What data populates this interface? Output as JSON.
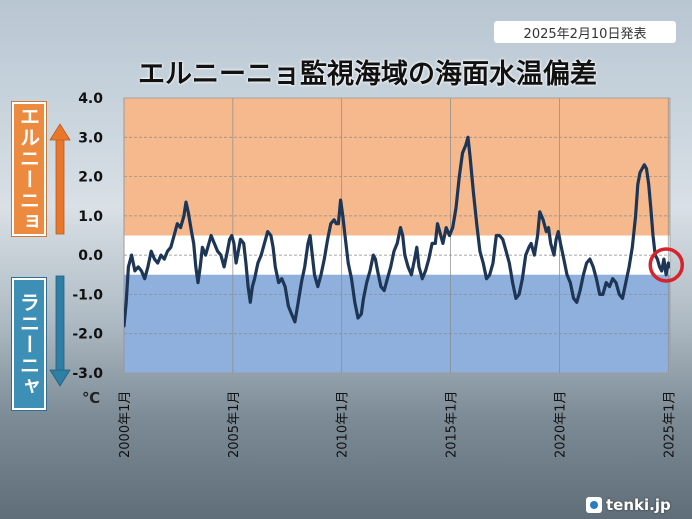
{
  "header": {
    "date_badge": "2025年2月10日発表",
    "title": "エルニーニョ監視海域の海面水温偏差"
  },
  "labels": {
    "el_nino": "エルニーニョ",
    "la_nina": "ラニーニャ",
    "unit": "℃"
  },
  "logo": {
    "text": "tenki.jp"
  },
  "colors": {
    "el_nino_zone": "#f5b98d",
    "la_nina_zone": "#8fb0dd",
    "line": "#1e3656",
    "highlight_circle": "#d5242b",
    "el_nino_label": "#ec8a3f",
    "la_nina_label": "#3d8fb5"
  },
  "chart_data": {
    "type": "line",
    "title": "エルニーニョ監視海域の海面水温偏差",
    "xlabel": "",
    "ylabel": "℃",
    "ylim": [
      -3.0,
      4.0
    ],
    "xlim": [
      2000.0,
      2025.08
    ],
    "yticks": [
      "4.0",
      "3.0",
      "2.0",
      "1.0",
      "0.0",
      "-1.0",
      "-2.0",
      "-3.0"
    ],
    "xticks": [
      {
        "value": 2000,
        "label": "2000年1月"
      },
      {
        "value": 2005,
        "label": "2005年1月"
      },
      {
        "value": 2010,
        "label": "2010年1月"
      },
      {
        "value": 2015,
        "label": "2015年1月"
      },
      {
        "value": 2020,
        "label": "2020年1月"
      },
      {
        "value": 2025,
        "label": "2025年1月"
      }
    ],
    "grid": true,
    "bands": [
      {
        "name": "el_nino",
        "from": 0.5,
        "to": 4.0
      },
      {
        "name": "neutral",
        "from": -0.5,
        "to": 0.5
      },
      {
        "name": "la_nina",
        "from": -3.0,
        "to": -0.5
      }
    ],
    "highlight": {
      "x": 2025.0,
      "y": -0.25
    },
    "series": [
      {
        "name": "",
        "points": [
          [
            2000.0,
            -1.8
          ],
          [
            2000.1,
            -1.2
          ],
          [
            2000.2,
            -0.3
          ],
          [
            2000.35,
            0.0
          ],
          [
            2000.5,
            -0.4
          ],
          [
            2000.65,
            -0.3
          ],
          [
            2000.8,
            -0.4
          ],
          [
            2000.95,
            -0.6
          ],
          [
            2001.1,
            -0.3
          ],
          [
            2001.25,
            0.1
          ],
          [
            2001.4,
            -0.1
          ],
          [
            2001.55,
            -0.2
          ],
          [
            2001.7,
            0.0
          ],
          [
            2001.85,
            -0.1
          ],
          [
            2002.0,
            0.1
          ],
          [
            2002.15,
            0.2
          ],
          [
            2002.3,
            0.5
          ],
          [
            2002.45,
            0.8
          ],
          [
            2002.6,
            0.7
          ],
          [
            2002.75,
            1.0
          ],
          [
            2002.85,
            1.35
          ],
          [
            2002.95,
            1.1
          ],
          [
            2003.1,
            0.6
          ],
          [
            2003.2,
            0.3
          ],
          [
            2003.3,
            -0.3
          ],
          [
            2003.4,
            -0.7
          ],
          [
            2003.5,
            -0.3
          ],
          [
            2003.6,
            0.2
          ],
          [
            2003.75,
            0.0
          ],
          [
            2003.9,
            0.3
          ],
          [
            2004.0,
            0.5
          ],
          [
            2004.15,
            0.3
          ],
          [
            2004.3,
            0.1
          ],
          [
            2004.45,
            0.0
          ],
          [
            2004.6,
            -0.3
          ],
          [
            2004.75,
            0.1
          ],
          [
            2004.85,
            0.4
          ],
          [
            2004.95,
            0.5
          ],
          [
            2005.05,
            0.3
          ],
          [
            2005.15,
            -0.2
          ],
          [
            2005.25,
            0.1
          ],
          [
            2005.35,
            0.4
          ],
          [
            2005.5,
            0.3
          ],
          [
            2005.6,
            -0.2
          ],
          [
            2005.7,
            -0.8
          ],
          [
            2005.8,
            -1.2
          ],
          [
            2005.9,
            -0.8
          ],
          [
            2006.0,
            -0.6
          ],
          [
            2006.15,
            -0.2
          ],
          [
            2006.3,
            0.0
          ],
          [
            2006.45,
            0.3
          ],
          [
            2006.6,
            0.6
          ],
          [
            2006.75,
            0.5
          ],
          [
            2006.85,
            0.2
          ],
          [
            2006.95,
            -0.3
          ],
          [
            2007.1,
            -0.7
          ],
          [
            2007.25,
            -0.6
          ],
          [
            2007.4,
            -0.8
          ],
          [
            2007.55,
            -1.3
          ],
          [
            2007.7,
            -1.5
          ],
          [
            2007.85,
            -1.7
          ],
          [
            2008.0,
            -1.2
          ],
          [
            2008.15,
            -0.7
          ],
          [
            2008.3,
            -0.3
          ],
          [
            2008.45,
            0.3
          ],
          [
            2008.55,
            0.5
          ],
          [
            2008.65,
            0.0
          ],
          [
            2008.75,
            -0.5
          ],
          [
            2008.9,
            -0.8
          ],
          [
            2009.05,
            -0.5
          ],
          [
            2009.2,
            -0.1
          ],
          [
            2009.35,
            0.4
          ],
          [
            2009.5,
            0.8
          ],
          [
            2009.65,
            0.9
          ],
          [
            2009.75,
            0.8
          ],
          [
            2009.85,
            0.8
          ],
          [
            2009.95,
            1.4
          ],
          [
            2010.05,
            1.0
          ],
          [
            2010.15,
            0.5
          ],
          [
            2010.3,
            -0.2
          ],
          [
            2010.45,
            -0.6
          ],
          [
            2010.6,
            -1.2
          ],
          [
            2010.75,
            -1.6
          ],
          [
            2010.9,
            -1.5
          ],
          [
            2011.0,
            -1.1
          ],
          [
            2011.15,
            -0.7
          ],
          [
            2011.3,
            -0.4
          ],
          [
            2011.45,
            0.0
          ],
          [
            2011.55,
            -0.1
          ],
          [
            2011.65,
            -0.4
          ],
          [
            2011.8,
            -0.8
          ],
          [
            2011.95,
            -0.9
          ],
          [
            2012.1,
            -0.6
          ],
          [
            2012.25,
            -0.3
          ],
          [
            2012.4,
            0.1
          ],
          [
            2012.55,
            0.3
          ],
          [
            2012.7,
            0.7
          ],
          [
            2012.8,
            0.5
          ],
          [
            2012.9,
            0.0
          ],
          [
            2013.05,
            -0.3
          ],
          [
            2013.2,
            -0.5
          ],
          [
            2013.35,
            -0.1
          ],
          [
            2013.45,
            0.2
          ],
          [
            2013.55,
            -0.3
          ],
          [
            2013.7,
            -0.6
          ],
          [
            2013.85,
            -0.4
          ],
          [
            2014.0,
            -0.1
          ],
          [
            2014.15,
            0.3
          ],
          [
            2014.3,
            0.3
          ],
          [
            2014.4,
            0.8
          ],
          [
            2014.5,
            0.6
          ],
          [
            2014.65,
            0.3
          ],
          [
            2014.8,
            0.7
          ],
          [
            2014.95,
            0.5
          ],
          [
            2015.1,
            0.7
          ],
          [
            2015.25,
            1.2
          ],
          [
            2015.4,
            2.0
          ],
          [
            2015.55,
            2.6
          ],
          [
            2015.7,
            2.8
          ],
          [
            2015.8,
            3.0
          ],
          [
            2015.9,
            2.5
          ],
          [
            2016.05,
            1.6
          ],
          [
            2016.2,
            0.8
          ],
          [
            2016.35,
            0.1
          ],
          [
            2016.5,
            -0.2
          ],
          [
            2016.65,
            -0.6
          ],
          [
            2016.8,
            -0.5
          ],
          [
            2016.95,
            -0.2
          ],
          [
            2017.1,
            0.5
          ],
          [
            2017.25,
            0.5
          ],
          [
            2017.4,
            0.4
          ],
          [
            2017.55,
            0.1
          ],
          [
            2017.7,
            -0.2
          ],
          [
            2017.85,
            -0.7
          ],
          [
            2018.0,
            -1.1
          ],
          [
            2018.15,
            -1.0
          ],
          [
            2018.3,
            -0.6
          ],
          [
            2018.45,
            0.0
          ],
          [
            2018.6,
            0.2
          ],
          [
            2018.7,
            0.3
          ],
          [
            2018.85,
            0.0
          ],
          [
            2019.0,
            0.5
          ],
          [
            2019.1,
            1.1
          ],
          [
            2019.25,
            0.9
          ],
          [
            2019.4,
            0.6
          ],
          [
            2019.5,
            0.7
          ],
          [
            2019.6,
            0.3
          ],
          [
            2019.75,
            0.0
          ],
          [
            2019.85,
            0.4
          ],
          [
            2019.95,
            0.6
          ],
          [
            2020.05,
            0.3
          ],
          [
            2020.2,
            -0.1
          ],
          [
            2020.35,
            -0.5
          ],
          [
            2020.5,
            -0.7
          ],
          [
            2020.65,
            -1.1
          ],
          [
            2020.8,
            -1.2
          ],
          [
            2020.95,
            -0.9
          ],
          [
            2021.1,
            -0.5
          ],
          [
            2021.25,
            -0.2
          ],
          [
            2021.4,
            -0.1
          ],
          [
            2021.55,
            -0.3
          ],
          [
            2021.7,
            -0.6
          ],
          [
            2021.85,
            -1.0
          ],
          [
            2022.0,
            -1.0
          ],
          [
            2022.15,
            -0.7
          ],
          [
            2022.3,
            -0.8
          ],
          [
            2022.45,
            -0.6
          ],
          [
            2022.6,
            -0.7
          ],
          [
            2022.75,
            -1.0
          ],
          [
            2022.9,
            -1.1
          ],
          [
            2023.05,
            -0.7
          ],
          [
            2023.2,
            -0.3
          ],
          [
            2023.35,
            0.2
          ],
          [
            2023.5,
            1.0
          ],
          [
            2023.6,
            1.8
          ],
          [
            2023.7,
            2.1
          ],
          [
            2023.8,
            2.2
          ],
          [
            2023.9,
            2.3
          ],
          [
            2024.0,
            2.2
          ],
          [
            2024.1,
            1.8
          ],
          [
            2024.2,
            1.2
          ],
          [
            2024.3,
            0.5
          ],
          [
            2024.4,
            0.0
          ],
          [
            2024.5,
            -0.1
          ],
          [
            2024.6,
            -0.3
          ],
          [
            2024.7,
            -0.4
          ],
          [
            2024.8,
            -0.1
          ],
          [
            2024.9,
            -0.5
          ],
          [
            2025.0,
            -0.2
          ],
          [
            2025.08,
            -0.3
          ]
        ]
      }
    ]
  }
}
